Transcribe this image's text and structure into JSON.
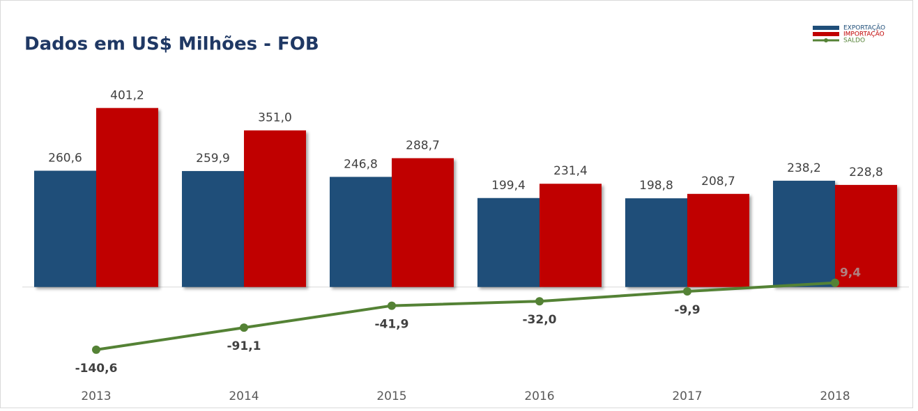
{
  "chart_data": {
    "type": "bar-line",
    "title": "Dados em US$ Milhões - FOB",
    "categories": [
      "2013",
      "2014",
      "2015",
      "2016",
      "2017",
      "2018"
    ],
    "series": [
      {
        "name": "EXPORTAÇÃO",
        "color": "#1f4e79",
        "type": "bar",
        "values": [
          260.6,
          259.9,
          246.8,
          199.4,
          198.8,
          238.2
        ],
        "value_labels": [
          "260,6",
          "259,9",
          "246,8",
          "199,4",
          "198,8",
          "238,2"
        ]
      },
      {
        "name": "IMPORTAÇÃO",
        "color": "#c00000",
        "type": "bar",
        "values": [
          401.2,
          351.0,
          288.7,
          231.4,
          208.7,
          228.8
        ],
        "value_labels": [
          "401,2",
          "351,0",
          "288,7",
          "231,4",
          "208,7",
          "228,8"
        ]
      },
      {
        "name": "SALDO",
        "color": "#548235",
        "type": "line",
        "values": [
          -140.6,
          -91.1,
          -41.9,
          -32.0,
          -9.9,
          9.4
        ],
        "value_labels": [
          "-140,6",
          "-91,1",
          "-41,9",
          "-32,0",
          "-9,9",
          "9,4"
        ]
      }
    ],
    "ylim": [
      -200,
      450
    ],
    "legend": "top-right"
  }
}
